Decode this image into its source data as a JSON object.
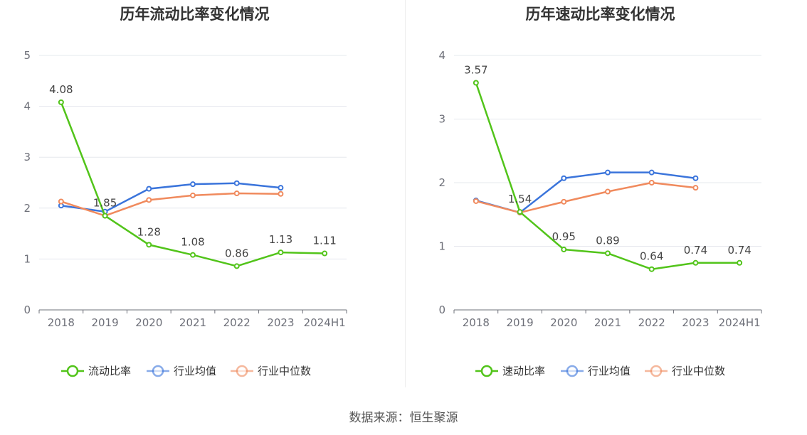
{
  "source": "数据来源：恒生聚源",
  "chart_data": [
    {
      "type": "line",
      "title": "历年流动比率变化情况",
      "categories": [
        "2018",
        "2019",
        "2020",
        "2021",
        "2022",
        "2023",
        "2024H1"
      ],
      "ylim": [
        0,
        5
      ],
      "yticks": [
        0,
        1,
        2,
        3,
        4,
        5
      ],
      "grid": true,
      "legend_position": "bottom",
      "series": [
        {
          "name": "流动比率",
          "color": "#52c41a",
          "values": [
            4.08,
            1.85,
            1.28,
            1.08,
            0.86,
            1.13,
            1.11
          ],
          "labels": [
            "4.08",
            "1.85",
            "1.28",
            "1.08",
            "0.86",
            "1.13",
            "1.11"
          ]
        },
        {
          "name": "行业均值",
          "color": "#3a74db",
          "values": [
            2.05,
            1.93,
            2.38,
            2.47,
            2.49,
            2.4,
            null
          ]
        },
        {
          "name": "行业中位数",
          "color": "#f08a5d",
          "values": [
            2.13,
            1.85,
            2.16,
            2.25,
            2.29,
            2.28,
            null
          ]
        }
      ]
    },
    {
      "type": "line",
      "title": "历年速动比率变化情况",
      "categories": [
        "2018",
        "2019",
        "2020",
        "2021",
        "2022",
        "2023",
        "2024H1"
      ],
      "ylim": [
        0,
        4
      ],
      "yticks": [
        0,
        1,
        2,
        3,
        4
      ],
      "grid": true,
      "legend_position": "bottom",
      "series": [
        {
          "name": "速动比率",
          "color": "#52c41a",
          "values": [
            3.57,
            1.54,
            0.95,
            0.89,
            0.64,
            0.74,
            0.74
          ],
          "labels": [
            "3.57",
            "1.54",
            "0.95",
            "0.89",
            "0.64",
            "0.74",
            "0.74"
          ]
        },
        {
          "name": "行业均值",
          "color": "#3a74db",
          "values": [
            1.72,
            1.53,
            2.07,
            2.16,
            2.16,
            2.07,
            null
          ]
        },
        {
          "name": "行业中位数",
          "color": "#f08a5d",
          "values": [
            1.71,
            1.53,
            1.7,
            1.86,
            2.0,
            1.92,
            null
          ]
        }
      ]
    }
  ]
}
